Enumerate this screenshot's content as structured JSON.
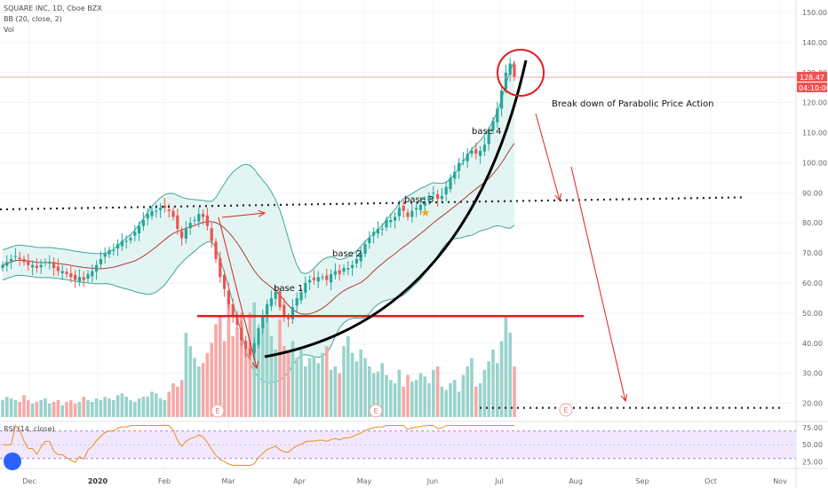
{
  "legend": {
    "symbol": "SQUARE INC, 1D, Cboe BZX",
    "bb": "BB (20, close, 2)",
    "vol": "Vol",
    "rsi": "RSI (14, close)"
  },
  "price_badge": {
    "price": "128.47",
    "countdown": "04:10:00"
  },
  "colors": {
    "up": "#26a69a",
    "down": "#ef5350",
    "band_fill": "#d9f2ee",
    "band_line": "#3fa796",
    "basis": "#b03a3a",
    "annotation_red": "#e01e1e",
    "rsi_line": "#f08c1a",
    "rsi_band": "#f1e8fd"
  },
  "chart_data": [
    {
      "type": "candlestick",
      "title": "SQUARE INC, 1D, Cboe BZX",
      "ylim": [
        15,
        155
      ],
      "y_ticks": [
        20,
        30,
        40,
        50,
        60,
        70,
        80,
        90,
        100,
        110,
        120,
        130,
        140,
        150
      ],
      "x_ticks": [
        "Dec",
        "2020",
        "Feb",
        "Mar",
        "Apr",
        "May",
        "Jun",
        "Jul",
        "Aug",
        "Sep",
        "Oct",
        "Nov"
      ],
      "close_series": [
        66,
        67,
        68,
        69,
        68,
        67,
        66,
        66,
        65,
        66,
        67,
        67,
        65,
        64,
        64,
        63,
        62,
        61,
        62,
        61,
        63,
        64,
        66,
        68,
        70,
        71,
        71,
        73,
        74,
        74,
        75,
        77,
        79,
        81,
        83,
        84,
        84,
        85,
        85,
        84,
        82,
        78,
        75,
        78,
        80,
        81,
        83,
        82,
        79,
        74,
        68,
        62,
        58,
        53,
        49,
        46,
        41,
        38,
        36,
        40,
        45,
        49,
        53,
        55,
        57,
        52,
        49,
        48,
        52,
        55,
        57,
        60,
        61,
        61,
        62,
        62,
        61,
        63,
        64,
        63,
        65,
        65,
        66,
        68,
        70,
        73,
        75,
        77,
        78,
        78,
        81,
        81,
        82,
        85,
        84,
        82,
        84,
        85,
        86,
        87,
        89,
        90,
        88,
        89,
        92,
        95,
        97,
        100,
        101,
        103,
        104,
        103,
        104,
        106,
        110,
        114,
        118,
        124,
        130,
        133,
        128.47
      ],
      "volume_bars": [
        10,
        12,
        11,
        10,
        9,
        13,
        10,
        8,
        9,
        10,
        11,
        8,
        9,
        10,
        7,
        9,
        10,
        8,
        9,
        12,
        10,
        9,
        11,
        10,
        12,
        11,
        10,
        13,
        14,
        12,
        10,
        9,
        11,
        12,
        12,
        15,
        14,
        11,
        10,
        15,
        20,
        18,
        22,
        50,
        42,
        35,
        30,
        32,
        38,
        44,
        55,
        60,
        45,
        70,
        48,
        53,
        62,
        40,
        62,
        68,
        44,
        55,
        60,
        48,
        40,
        58,
        42,
        38,
        45,
        35,
        40,
        30,
        35,
        36,
        32,
        38,
        42,
        28,
        30,
        26,
        42,
        48,
        38,
        33,
        40,
        35,
        30,
        26,
        27,
        32,
        25,
        22,
        20,
        28,
        18,
        25,
        21,
        22,
        26,
        24,
        20,
        28,
        30,
        18,
        16,
        20,
        22,
        15,
        25,
        30,
        35,
        18,
        20,
        28,
        33,
        40,
        32,
        45,
        60,
        50,
        30
      ],
      "rsi_levels": [
        75,
        50,
        25
      ],
      "annotations": {
        "title": "Break down of Parabolic Price Action",
        "bases": [
          "base 1",
          "base 2",
          "base 3",
          "base 4"
        ],
        "earnings_marker": "E",
        "support_levels": [
          87,
          49,
          18.5
        ]
      }
    }
  ]
}
